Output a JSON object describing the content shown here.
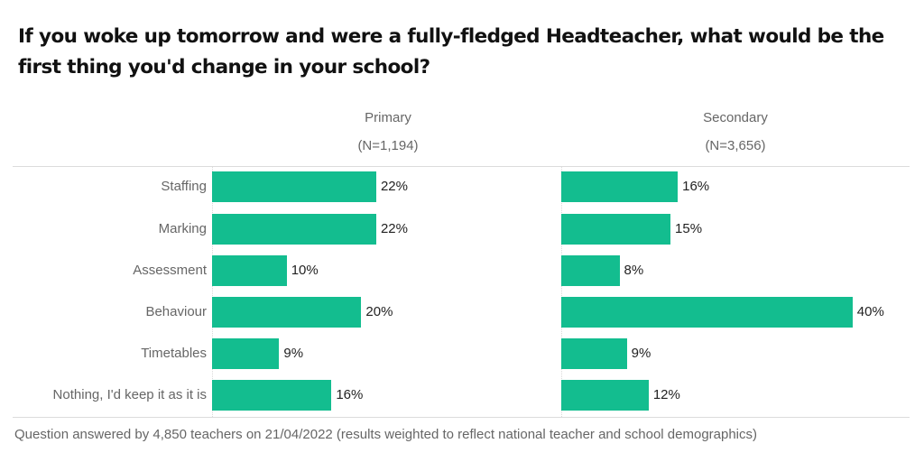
{
  "title": "If you woke up tomorrow and were a fully-fledged Headteacher, what would be the first thing you'd change in your school?",
  "panels": [
    {
      "name": "Primary",
      "n_label": "(N=1,194)"
    },
    {
      "name": "Secondary",
      "n_label": "(N=3,656)"
    }
  ],
  "rows": [
    "Staffing",
    "Marking",
    "Assessment",
    "Behaviour",
    "Timetables",
    "Nothing, I'd keep it as it is"
  ],
  "primary_labels": [
    "22%",
    "22%",
    "10%",
    "20%",
    "9%",
    "16%"
  ],
  "secondary_labels": [
    "16%",
    "15%",
    "8%",
    "40%",
    "9%",
    "12%"
  ],
  "footer": "Question answered by 4,850 teachers on 21/04/2022 (results weighted to reflect national teacher and school demographics)",
  "colors": {
    "bar": "#13bd8f"
  },
  "chart_data": {
    "type": "bar",
    "orientation": "horizontal",
    "title": "If you woke up tomorrow and were a fully-fledged Headteacher, what would be the first thing you'd change in your school?",
    "categories": [
      "Staffing",
      "Marking",
      "Assessment",
      "Behaviour",
      "Timetables",
      "Nothing, I'd keep it as it is"
    ],
    "series": [
      {
        "name": "Primary (N=1,194)",
        "values": [
          22,
          22,
          10,
          20,
          9,
          16
        ]
      },
      {
        "name": "Secondary (N=3,656)",
        "values": [
          16,
          15,
          8,
          40,
          9,
          12
        ]
      }
    ],
    "unit": "%",
    "layout": "small multiples, side-by-side panels",
    "xlabel": "",
    "ylabel": "",
    "grid": false,
    "legend": "none (panel headers)",
    "footnote": "Question answered by 4,850 teachers on 21/04/2022 (results weighted to reflect national teacher and school demographics)"
  }
}
